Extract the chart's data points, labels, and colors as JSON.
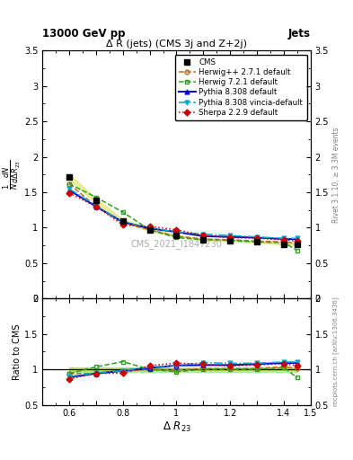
{
  "title_top": "13000 GeV pp",
  "title_right": "Jets",
  "plot_title": "Δ R (jets) (CMS 3j and Z+2j)",
  "xlabel": "Δ R_{23}",
  "ylabel_main": "$\\frac{1}{N}\\frac{dN}{d\\Delta\\ R_{23}}$",
  "ylabel_ratio": "Ratio to CMS",
  "watermark": "CMS_2021_I1847230",
  "right_label1": "Rivet 3.1.10, ≥ 3.3M events",
  "right_label2": "mcplots.cern.ch [arXiv:1306.3436]",
  "x_values": [
    0.6,
    0.7,
    0.8,
    0.9,
    1.0,
    1.1,
    1.2,
    1.3,
    1.4,
    1.45
  ],
  "cms_y": [
    1.72,
    1.38,
    1.1,
    0.97,
    0.89,
    0.83,
    0.82,
    0.8,
    0.77,
    0.77
  ],
  "cms_err": [
    0.04,
    0.03,
    0.02,
    0.02,
    0.01,
    0.01,
    0.01,
    0.01,
    0.01,
    0.01
  ],
  "herwig271_y": [
    1.62,
    1.3,
    1.07,
    0.97,
    0.88,
    0.84,
    0.83,
    0.81,
    0.8,
    0.78
  ],
  "herwig721_y": [
    1.62,
    1.43,
    1.22,
    0.97,
    0.86,
    0.83,
    0.82,
    0.8,
    0.79,
    0.68
  ],
  "pythia8308_y": [
    1.53,
    1.3,
    1.08,
    0.99,
    0.94,
    0.88,
    0.87,
    0.86,
    0.84,
    0.84
  ],
  "pythia8308v_y": [
    1.55,
    1.31,
    1.08,
    1.0,
    0.94,
    0.91,
    0.89,
    0.87,
    0.85,
    0.85
  ],
  "sherpa229_y": [
    1.49,
    1.3,
    1.04,
    1.02,
    0.97,
    0.89,
    0.86,
    0.85,
    0.83,
    0.81
  ],
  "cms_color": "#000000",
  "herwig271_color": "#b87020",
  "herwig721_color": "#30a020",
  "pythia8308_color": "#0000dd",
  "pythia8308v_color": "#00aacc",
  "sherpa229_color": "#cc0000",
  "cms_band_color": "#cccc00",
  "cms_band_alpha": 0.35,
  "green_band_color": "#00cc00",
  "green_band_alpha": 0.25,
  "ylim_main": [
    0.0,
    3.5
  ],
  "ylim_ratio": [
    0.5,
    2.0
  ],
  "xlim": [
    0.5,
    1.5
  ]
}
